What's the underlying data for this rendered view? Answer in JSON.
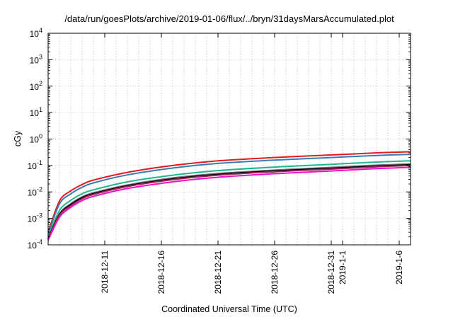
{
  "chart_data": {
    "type": "line",
    "title": "/data/run/goesPlots/archive/2019-01-06/flux/../bryn/31daysMarsAccumulated.plot",
    "xlabel": "Coordinated Universal Time (UTC)",
    "ylabel": "cGy",
    "y_scale": "log",
    "ylim": [
      0.0001,
      10000
    ],
    "xlim": [
      "2018-12-06",
      "2019-01-07"
    ],
    "grid": true,
    "legend": "none",
    "y_ticks": [
      {
        "base": "10",
        "exp": "-4",
        "value": 0.0001
      },
      {
        "base": "10",
        "exp": "-3",
        "value": 0.001
      },
      {
        "base": "10",
        "exp": "-2",
        "value": 0.01
      },
      {
        "base": "10",
        "exp": "-1",
        "value": 0.1
      },
      {
        "base": "10",
        "exp": "0",
        "value": 1
      },
      {
        "base": "10",
        "exp": "1",
        "value": 10
      },
      {
        "base": "10",
        "exp": "2",
        "value": 100
      },
      {
        "base": "10",
        "exp": "3",
        "value": 1000
      },
      {
        "base": "10",
        "exp": "4",
        "value": 10000
      }
    ],
    "x_ticks": [
      {
        "date": "2018-12-11",
        "label": "2018-12-11"
      },
      {
        "date": "2018-12-16",
        "label": "2018-12-16"
      },
      {
        "date": "2018-12-21",
        "label": "2018-12-21"
      },
      {
        "date": "2018-12-26",
        "label": "2018-12-26"
      },
      {
        "date": "2018-12-31",
        "label": "2018-12-31"
      },
      {
        "date": "2019-01-01",
        "label": "2019-1-1"
      },
      {
        "date": "2019-01-06",
        "label": "2019-1-6"
      }
    ],
    "series": [
      {
        "color": "#e41a1c",
        "x": [
          "2018-12-06",
          "2018-12-07",
          "2018-12-08",
          "2018-12-09",
          "2018-12-10",
          "2018-12-13",
          "2018-12-17",
          "2018-12-21",
          "2018-12-26",
          "2018-12-31",
          "2019-01-04",
          "2019-01-07"
        ],
        "y": [
          0.0003,
          0.0045,
          0.011,
          0.019,
          0.028,
          0.055,
          0.1,
          0.15,
          0.2,
          0.25,
          0.3,
          0.33
        ]
      },
      {
        "color": "#377eb8",
        "x": [
          "2018-12-06",
          "2018-12-07",
          "2018-12-08",
          "2018-12-09",
          "2018-12-10",
          "2018-12-13",
          "2018-12-17",
          "2018-12-21",
          "2018-12-26",
          "2018-12-31",
          "2019-01-04",
          "2019-01-07"
        ],
        "y": [
          0.00025,
          0.0035,
          0.0085,
          0.015,
          0.022,
          0.044,
          0.08,
          0.12,
          0.16,
          0.2,
          0.24,
          0.265
        ]
      },
      {
        "color": "#1fb58f",
        "x": [
          "2018-12-06",
          "2018-12-07",
          "2018-12-08",
          "2018-12-09",
          "2018-12-10",
          "2018-12-13",
          "2018-12-17",
          "2018-12-21",
          "2018-12-26",
          "2018-12-31",
          "2019-01-04",
          "2019-01-07"
        ],
        "y": [
          0.0002,
          0.002,
          0.0048,
          0.0085,
          0.012,
          0.024,
          0.043,
          0.064,
          0.087,
          0.11,
          0.135,
          0.15
        ]
      },
      {
        "color": "#7a6a7a",
        "x": [
          "2018-12-06",
          "2018-12-07",
          "2018-12-08",
          "2018-12-09",
          "2018-12-10",
          "2018-12-13",
          "2018-12-17",
          "2018-12-21",
          "2018-12-26",
          "2018-12-31",
          "2019-01-04",
          "2019-01-07"
        ],
        "y": [
          0.00018,
          0.0015,
          0.0036,
          0.0065,
          0.0093,
          0.0185,
          0.034,
          0.05,
          0.067,
          0.085,
          0.103,
          0.115
        ]
      },
      {
        "color": "#000000",
        "x": [
          "2018-12-06",
          "2018-12-07",
          "2018-12-08",
          "2018-12-09",
          "2018-12-10",
          "2018-12-13",
          "2018-12-17",
          "2018-12-21",
          "2018-12-26",
          "2018-12-31",
          "2019-01-04",
          "2019-01-07"
        ],
        "y": [
          0.00017,
          0.0014,
          0.0033,
          0.006,
          0.0086,
          0.017,
          0.031,
          0.046,
          0.062,
          0.078,
          0.095,
          0.106
        ]
      },
      {
        "color": "#9e2a5c",
        "x": [
          "2018-12-06",
          "2018-12-07",
          "2018-12-08",
          "2018-12-09",
          "2018-12-10",
          "2018-12-13",
          "2018-12-17",
          "2018-12-21",
          "2018-12-26",
          "2018-12-31",
          "2019-01-04",
          "2019-01-07"
        ],
        "y": [
          0.00016,
          0.0013,
          0.003,
          0.0055,
          0.008,
          0.016,
          0.029,
          0.043,
          0.058,
          0.073,
          0.089,
          0.1
        ]
      },
      {
        "color": "#ee11cc",
        "x": [
          "2018-12-06",
          "2018-12-07",
          "2018-12-08",
          "2018-12-09",
          "2018-12-10",
          "2018-12-13",
          "2018-12-17",
          "2018-12-21",
          "2018-12-26",
          "2018-12-31",
          "2019-01-04",
          "2019-01-07"
        ],
        "y": [
          0.00015,
          0.0011,
          0.0026,
          0.0047,
          0.0068,
          0.0135,
          0.024,
          0.036,
          0.049,
          0.062,
          0.076,
          0.085
        ]
      }
    ]
  }
}
